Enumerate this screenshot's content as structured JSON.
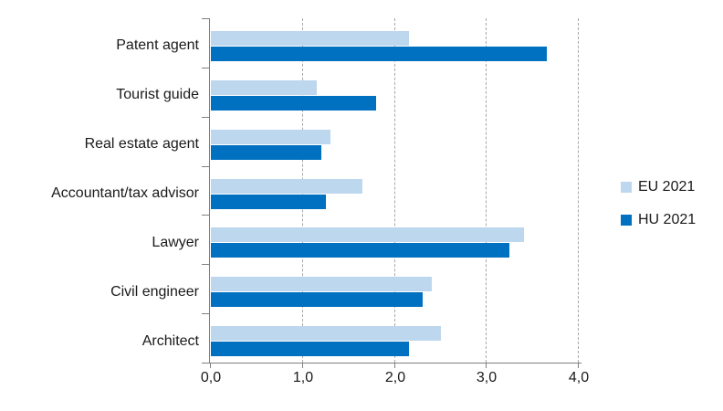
{
  "chart_data": {
    "type": "bar",
    "orientation": "horizontal",
    "title": "",
    "categories": [
      "Patent agent",
      "Tourist guide",
      "Real estate agent",
      "Accountant/tax advisor",
      "Lawyer",
      "Civil engineer",
      "Architect"
    ],
    "series": [
      {
        "name": "EU 2021",
        "color": "#BDD7EE",
        "values": [
          2.15,
          1.15,
          1.3,
          1.65,
          3.4,
          2.4,
          2.5
        ]
      },
      {
        "name": "HU 2021",
        "color": "#0070C0",
        "values": [
          3.65,
          1.8,
          1.2,
          1.25,
          3.25,
          2.3,
          2.15
        ]
      }
    ],
    "xlabel": "",
    "ylabel": "",
    "xlim": [
      0,
      4
    ],
    "x_tick_labels": [
      "0,0",
      "1,0",
      "2,0",
      "3,0",
      "4,0"
    ],
    "x_tick_values": [
      0,
      1,
      2,
      3,
      4
    ],
    "grid": "vertical dashed gridlines at each x tick",
    "legend_position": "right",
    "colors": {
      "axis": "#7F7F7F",
      "gridline": "#A6A6A6",
      "text": "#1A1A1A",
      "background": "#FFFFFF"
    }
  }
}
